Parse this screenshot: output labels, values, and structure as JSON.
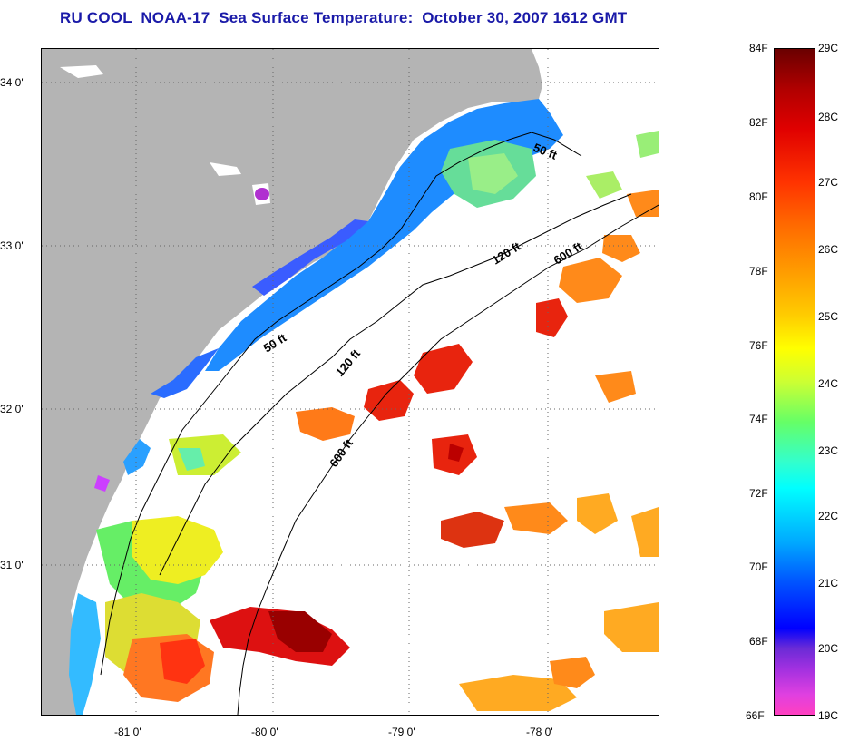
{
  "title": "RU COOL  NOAA-17  Sea Surface Temperature:  October 30, 2007 1612 GMT",
  "map": {
    "lat_ticks": [
      "34 0'",
      "33 0'",
      "32 0'",
      "31 0'"
    ],
    "lon_ticks": [
      "-81 0'",
      "-80 0'",
      "-79 0'",
      "-78 0'"
    ],
    "contour_labels": [
      "50 ft",
      "120 ft",
      "600 ft",
      "50 ft",
      "120 ft",
      "600 ft"
    ],
    "colors": {
      "land": "#b4b4b4",
      "no_data": "#ffffff"
    }
  },
  "colorbar": {
    "fahrenheit": [
      "84F",
      "82F",
      "80F",
      "78F",
      "76F",
      "74F",
      "72F",
      "70F",
      "68F",
      "66F"
    ],
    "celsius": [
      "29C",
      "28C",
      "27C",
      "26C",
      "25C",
      "24C",
      "23C",
      "22C",
      "21C",
      "20C",
      "19C"
    ]
  }
}
